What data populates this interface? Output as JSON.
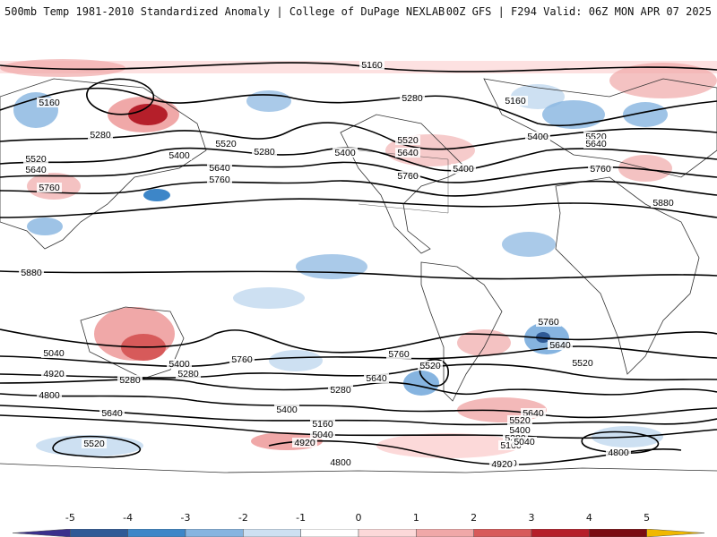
{
  "header": {
    "title": "500mb Temp 1981-2010 Standardized Anomaly | College of DuPage NEXLAB",
    "run_info": "00Z GFS | F294 Valid: 06Z MON APR 07 2025"
  },
  "map": {
    "contour_labels": [
      "5160",
      "5160",
      "5280",
      "5160",
      "5280",
      "5280",
      "5400",
      "5520",
      "5640",
      "5760",
      "5400",
      "5520",
      "5640",
      "5760",
      "5400",
      "5520",
      "5640",
      "5760",
      "5880",
      "5400",
      "5520",
      "5640",
      "5760",
      "5880",
      "5760",
      "5640",
      "5520",
      "5400",
      "5280",
      "5040",
      "4920",
      "4800",
      "5640",
      "5520",
      "5280",
      "5760",
      "5760",
      "5520",
      "5640",
      "5280",
      "5400",
      "5160",
      "5040",
      "4920",
      "4800",
      "5760",
      "5640",
      "5520",
      "5400",
      "5280",
      "5160",
      "5040",
      "4920",
      "4800"
    ],
    "basemap": "world-continents-cylindrical"
  },
  "colorbar": {
    "tick_labels": [
      "-5",
      "-4",
      "-3",
      "-2",
      "-1",
      "0",
      "1",
      "2",
      "3",
      "4",
      "5"
    ],
    "colors": [
      "#3a2f8c",
      "#2f5a96",
      "#3d86c8",
      "#86b4e0",
      "#cde0f2",
      "#ffffff",
      "#fcd9d9",
      "#f0a8a8",
      "#d75a5a",
      "#b51f2a",
      "#7a0c12",
      "#f0b800"
    ]
  }
}
